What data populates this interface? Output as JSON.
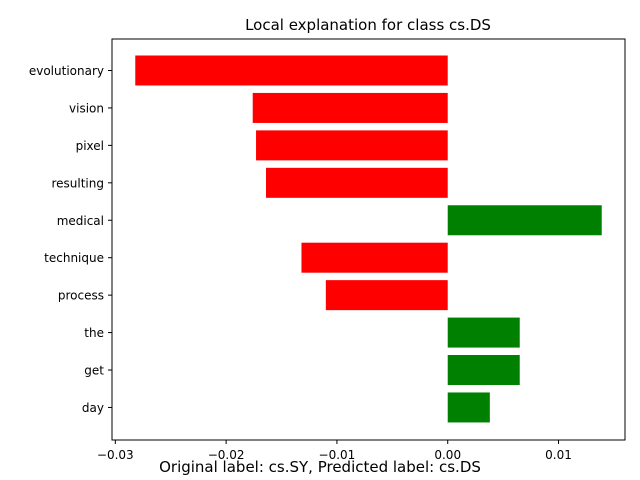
{
  "chart_data": {
    "type": "bar",
    "orientation": "horizontal",
    "title": "Local explanation for class cs.DS",
    "xlabel": "",
    "ylabel": "",
    "xlim": [
      -0.0303,
      0.016
    ],
    "xticks": [
      -0.03,
      -0.02,
      -0.01,
      0.0,
      0.01
    ],
    "xtick_labels": [
      "−0.03",
      "−0.02",
      "−0.01",
      "0.00",
      "0.01"
    ],
    "categories": [
      "evolutionary",
      "vision",
      "pixel",
      "resulting",
      "medical",
      "technique",
      "process",
      "the",
      "get",
      "day"
    ],
    "values": [
      -0.0282,
      -0.0176,
      -0.0173,
      -0.0164,
      0.0139,
      -0.0132,
      -0.011,
      0.0065,
      0.0065,
      0.0038
    ],
    "positive_color": "#008000",
    "negative_color": "#ff0000",
    "grid": false,
    "legend": "none"
  },
  "caption": "Original label: cs.SY, Predicted label: cs.DS"
}
